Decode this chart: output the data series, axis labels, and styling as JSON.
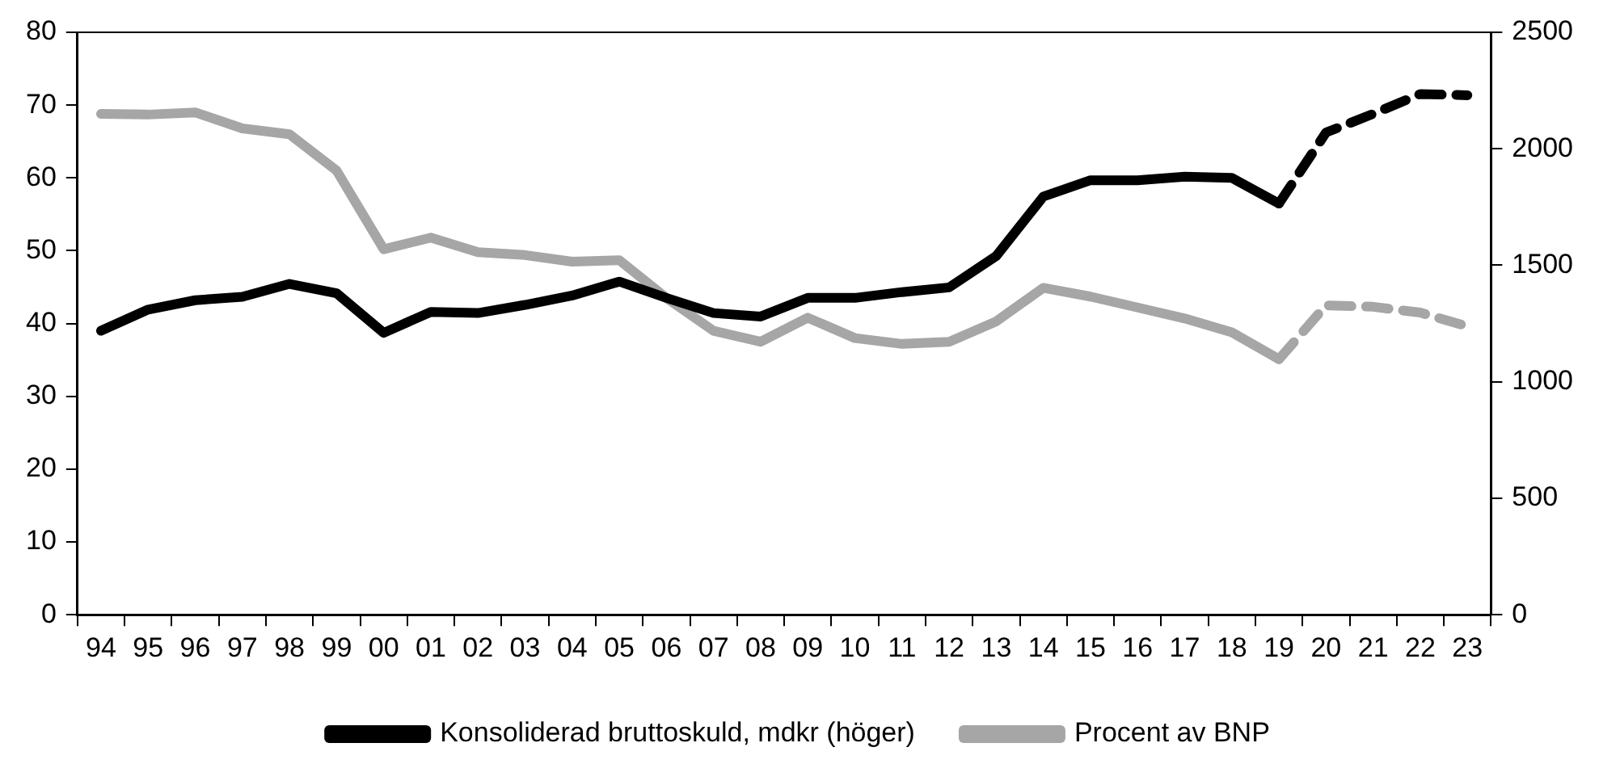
{
  "chart_data": {
    "type": "line",
    "categories": [
      "94",
      "95",
      "96",
      "97",
      "98",
      "99",
      "00",
      "01",
      "02",
      "03",
      "04",
      "05",
      "06",
      "07",
      "08",
      "09",
      "10",
      "11",
      "12",
      "13",
      "14",
      "15",
      "16",
      "17",
      "18",
      "19",
      "20",
      "21",
      "22",
      "23"
    ],
    "series": [
      {
        "name": "Konsoliderad bruttoskuld, mdkr (höger)",
        "color": "#000000",
        "axis": "y2",
        "line_style": "solid",
        "values": [
          1219,
          1310,
          1350,
          1365,
          1420,
          1380,
          1210,
          1300,
          1295,
          1330,
          1370,
          1430,
          1360,
          1295,
          1280,
          1360,
          1360,
          1385,
          1405,
          1540,
          1795,
          1865,
          1865,
          1880,
          1875,
          1765,
          null,
          null,
          null,
          null
        ]
      },
      {
        "color": "#000000",
        "axis": "y2",
        "line_style": "dashed",
        "values": [
          null,
          null,
          null,
          null,
          null,
          null,
          null,
          null,
          null,
          null,
          null,
          null,
          null,
          null,
          null,
          null,
          null,
          null,
          null,
          null,
          null,
          null,
          null,
          null,
          null,
          1765,
          2070,
          2150,
          2235,
          2230
        ]
      },
      {
        "name": "Procent av BNP",
        "color": "#a6a6a6",
        "axis": "y",
        "line_style": "solid",
        "values": [
          68.8,
          68.7,
          69,
          66.8,
          66,
          61,
          50.2,
          51.8,
          49.8,
          49.4,
          48.5,
          48.7,
          43.5,
          39,
          37.5,
          40.8,
          38,
          37.2,
          37.5,
          40.3,
          44.9,
          43.7,
          42.2,
          40.7,
          38.8,
          35.1,
          null,
          null,
          null,
          null
        ]
      },
      {
        "color": "#a6a6a6",
        "axis": "y",
        "line_style": "dashed",
        "values": [
          null,
          null,
          null,
          null,
          null,
          null,
          null,
          null,
          null,
          null,
          null,
          null,
          null,
          null,
          null,
          null,
          null,
          null,
          null,
          null,
          null,
          null,
          null,
          null,
          null,
          35.1,
          42.5,
          42.3,
          41.5,
          39.6
        ]
      }
    ],
    "ylim": [
      0,
      80
    ],
    "yticks": [
      0,
      10,
      20,
      30,
      40,
      50,
      60,
      70,
      80
    ],
    "y2lim": [
      0,
      2500
    ],
    "y2ticks": [
      0,
      500,
      1000,
      1500,
      2000,
      2500
    ],
    "grid": false,
    "legend": "bottom",
    "marker": "none"
  }
}
